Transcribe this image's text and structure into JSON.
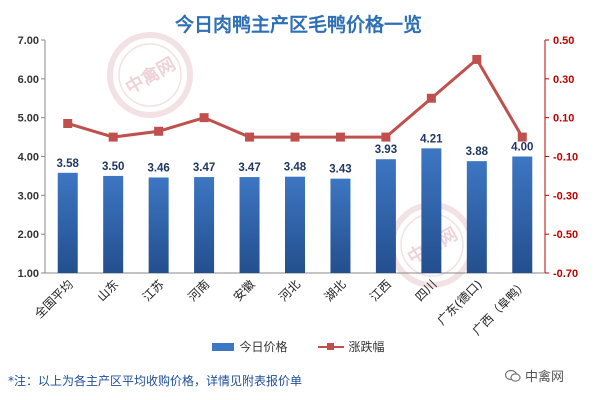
{
  "title": "今日肉鸭主产区毛鸭价格一览",
  "footnote": "*注：以上为各主产区平均收购价格，详情见附表报价单",
  "brand": {
    "name": "中禽网",
    "icon": "wechat-icon"
  },
  "watermark": {
    "text": "中禽网"
  },
  "colors": {
    "bar": "#3d76c2",
    "bar_dark": "#234f8e",
    "line": "#c0504d",
    "left_axis": "#333333",
    "right_axis": "#c00000",
    "title": "#2e6fb5",
    "label": "#1f3864"
  },
  "chart_data": {
    "type": "bar",
    "title": "今日肉鸭主产区毛鸭价格一览",
    "categories": [
      "全国平均",
      "山东",
      "江苏",
      "河南",
      "安徽",
      "河北",
      "湖北",
      "江西",
      "四川",
      "广东(德口)",
      "广西（阜鸭）"
    ],
    "series": [
      {
        "name": "今日价格",
        "type": "bar",
        "axis": "left",
        "values": [
          3.58,
          3.5,
          3.46,
          3.47,
          3.47,
          3.48,
          3.43,
          3.93,
          4.21,
          3.88,
          4.0
        ],
        "labels": [
          "3.58",
          "3.50",
          "3.46",
          "3.47",
          "3.47",
          "3.48",
          "3.43",
          "3.93",
          "4.21",
          "3.88",
          "4.00"
        ]
      },
      {
        "name": "涨跌幅",
        "type": "line",
        "axis": "right",
        "values": [
          0.07,
          0.0,
          0.03,
          0.1,
          0.0,
          0.0,
          0.0,
          0.0,
          0.2,
          0.4,
          0.0
        ]
      }
    ],
    "y_left": {
      "min": 1.0,
      "max": 7.0,
      "ticks": [
        "1.00",
        "2.00",
        "3.00",
        "4.00",
        "5.00",
        "6.00",
        "7.00"
      ]
    },
    "y_right": {
      "min": -0.7,
      "max": 0.5,
      "ticks": [
        "-0.70",
        "-0.50",
        "-0.30",
        "-0.10",
        "0.10",
        "0.30",
        "0.50"
      ]
    },
    "legend_position": "bottom",
    "grid": false
  }
}
